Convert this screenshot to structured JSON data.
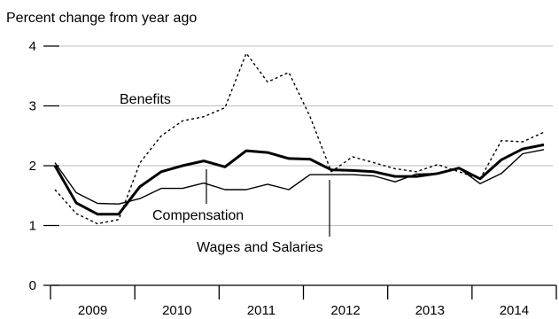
{
  "chart_data": {
    "type": "line",
    "title": "",
    "ylabel": "Percent change from year ago",
    "xlabel": "",
    "ylim": [
      0,
      4
    ],
    "yticks": [
      "0",
      "1",
      "2",
      "3",
      "4"
    ],
    "grid": true,
    "years": [
      "2009",
      "2010",
      "2011",
      "2012",
      "2013",
      "2014"
    ],
    "x": [
      "2009Q1",
      "2009Q2",
      "2009Q3",
      "2009Q4",
      "2010Q1",
      "2010Q2",
      "2010Q3",
      "2010Q4",
      "2011Q1",
      "2011Q2",
      "2011Q3",
      "2011Q4",
      "2012Q1",
      "2012Q2",
      "2012Q3",
      "2012Q4",
      "2013Q1",
      "2013Q2",
      "2013Q3",
      "2013Q4",
      "2014Q1",
      "2014Q2",
      "2014Q3",
      "2014Q4"
    ],
    "series": [
      {
        "name": "Benefits",
        "style": "dotted",
        "values": [
          1.6,
          1.2,
          1.03,
          1.1,
          2.05,
          2.5,
          2.75,
          2.82,
          2.97,
          3.88,
          3.4,
          3.56,
          2.82,
          1.9,
          2.15,
          2.05,
          1.95,
          1.9,
          2.02,
          1.9,
          1.78,
          2.42,
          2.4,
          2.56
        ]
      },
      {
        "name": "Compensation",
        "style": "bold",
        "values": [
          2.0,
          1.38,
          1.19,
          1.19,
          1.65,
          1.9,
          2.0,
          2.08,
          1.98,
          2.25,
          2.22,
          2.12,
          2.11,
          1.93,
          1.92,
          1.9,
          1.82,
          1.82,
          1.87,
          1.96,
          1.78,
          2.1,
          2.28,
          2.35
        ]
      },
      {
        "name": "Wages and Salaries",
        "style": "thin",
        "values": [
          2.05,
          1.55,
          1.37,
          1.36,
          1.45,
          1.62,
          1.62,
          1.71,
          1.6,
          1.6,
          1.69,
          1.6,
          1.85,
          1.85,
          1.85,
          1.83,
          1.73,
          1.86,
          1.87,
          1.96,
          1.7,
          1.87,
          2.2,
          2.27
        ]
      }
    ],
    "annotations": [
      {
        "text": "Benefits",
        "series": "Benefits"
      },
      {
        "text": "Compensation",
        "series": "Compensation"
      },
      {
        "text": "Wages and Salaries",
        "series": "Wages and Salaries"
      }
    ]
  }
}
